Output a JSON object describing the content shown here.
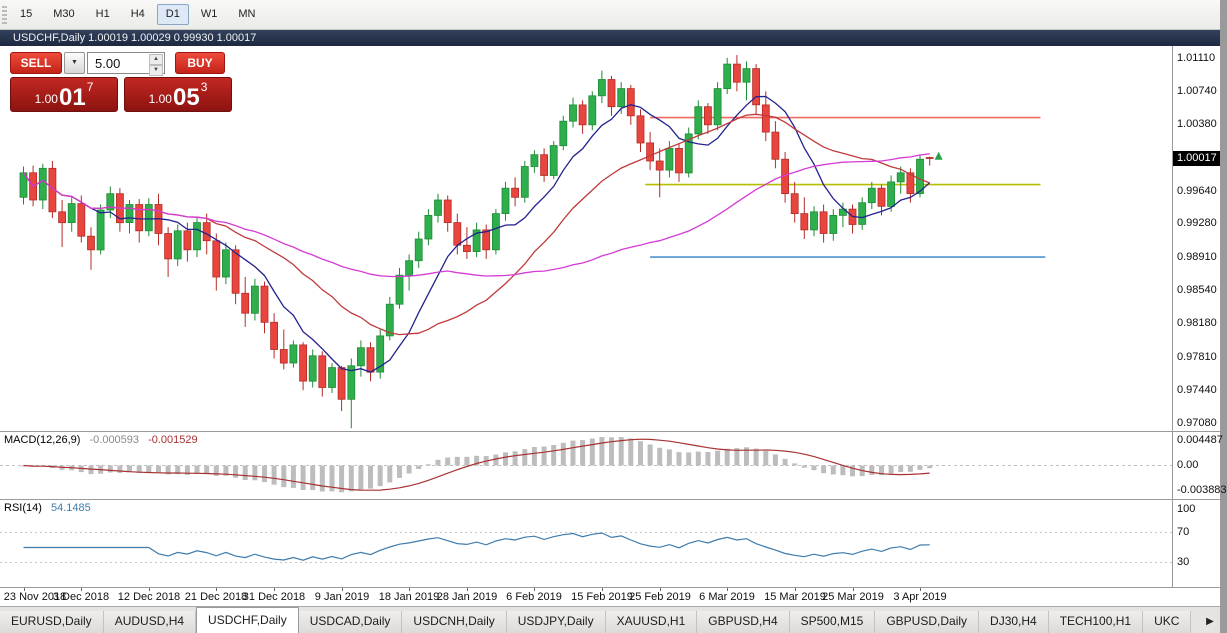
{
  "toolbar": {
    "timeframes": [
      {
        "label": "15",
        "active": false
      },
      {
        "label": "M30",
        "active": false
      },
      {
        "label": "H1",
        "active": false
      },
      {
        "label": "H4",
        "active": false
      },
      {
        "label": "D1",
        "active": true
      },
      {
        "label": "W1",
        "active": false
      },
      {
        "label": "MN",
        "active": false
      }
    ]
  },
  "chart_header": {
    "title": "USDCHF,Daily  1.00019 1.00029 0.99930 1.00017"
  },
  "trade_panel": {
    "sell_label": "SELL",
    "buy_label": "BUY",
    "volume_value": "5.00",
    "dropdown_icon": "▼",
    "spin_up_icon": "▲",
    "spin_down_icon": "▼",
    "sell_price": {
      "prefix": "1.00",
      "big": "01",
      "sup": "7"
    },
    "buy_price": {
      "prefix": "1.00",
      "big": "05",
      "sup": "3"
    }
  },
  "tabs": {
    "active_index": 2,
    "scroll_right_icon": "▶",
    "items": [
      "EURUSD,Daily",
      "AUDUSD,H4",
      "USDCHF,Daily",
      "USDCAD,Daily",
      "USDCNH,Daily",
      "USDJPY,Daily",
      "XAUUSD,H1",
      "GBPUSD,H4",
      "SP500,M15",
      "GBPUSD,Daily",
      "DJ30,H4",
      "TECH100,H1",
      "UKC"
    ]
  },
  "chart_data": {
    "type": "candlestick",
    "symbol": "USDCHF",
    "period": "Daily",
    "open_high_low_close": [
      "1.00019",
      "1.00029",
      "0.99930",
      "1.00017"
    ],
    "price_range": {
      "min": 0.97,
      "max": 1.0125
    },
    "price_axis": {
      "ticks": [
        "1.01110",
        "1.00740",
        "1.00380",
        "0.99640",
        "0.99280",
        "0.98910",
        "0.98540",
        "0.98180",
        "0.97810",
        "0.97440",
        "0.97080"
      ],
      "current": "1.00017"
    },
    "colors": {
      "up": "#2fae4d",
      "up_border": "#1e8c34",
      "down": "#e8453e",
      "down_border": "#b32c28"
    },
    "moving_averages": [
      {
        "period": 8,
        "color": "#22228e"
      },
      {
        "period": 20,
        "color": "#c03a3a"
      },
      {
        "period": 45,
        "color": "#d63bd6"
      }
    ],
    "hlines": [
      {
        "price": 1.0046,
        "color": "#ef6a5e",
        "from_bar": 65,
        "to_bar": 105.5
      },
      {
        "price": 0.9972,
        "color": "#b8bd00",
        "from_bar": 64.5,
        "to_bar": 105.5
      },
      {
        "price": 0.9892,
        "color": "#4f94cd",
        "from_bar": 65,
        "to_bar": 106
      }
    ],
    "indicators": {
      "macd": {
        "name": "MACD(12,26,9)",
        "value_main": "-0.000593",
        "value_signal": "-0.001529",
        "fast": 12,
        "slow": 26,
        "signal": 9,
        "histogram_color": "#bdbdbd",
        "signal_color": "#a83232",
        "axis_labels": [
          "0.004487",
          "0.00",
          "-0.003883"
        ]
      },
      "rsi": {
        "name": "RSI(14)",
        "value": "54.1485",
        "period": 14,
        "color": "#3f7cac",
        "levels": [
          70,
          30
        ],
        "axis_labels": [
          "100",
          "70",
          "30"
        ]
      }
    },
    "date_labels": [
      {
        "text": "23 Nov 2018",
        "bar": 0
      },
      {
        "text": "3 Dec 2018",
        "bar": 6
      },
      {
        "text": "12 Dec 2018",
        "bar": 13
      },
      {
        "text": "21 Dec 2018",
        "bar": 20
      },
      {
        "text": "31 Dec 2018",
        "bar": 26
      },
      {
        "text": "9 Jan 2019",
        "bar": 33
      },
      {
        "text": "18 Jan 2019",
        "bar": 40
      },
      {
        "text": "28 Jan 2019",
        "bar": 46
      },
      {
        "text": "6 Feb 2019",
        "bar": 53
      },
      {
        "text": "15 Feb 2019",
        "bar": 60
      },
      {
        "text": "25 Feb 2019",
        "bar": 66
      },
      {
        "text": "6 Mar 2019",
        "bar": 73
      },
      {
        "text": "15 Mar 2019",
        "bar": 80
      },
      {
        "text": "25 Mar 2019",
        "bar": 86
      },
      {
        "text": "3 Apr 2019",
        "bar": 93
      }
    ],
    "ohlc": [
      [
        0.9958,
        0.9992,
        0.995,
        0.9985
      ],
      [
        0.9985,
        0.9993,
        0.9948,
        0.9955
      ],
      [
        0.9955,
        0.9995,
        0.9945,
        0.999
      ],
      [
        0.999,
        0.9998,
        0.9935,
        0.9942
      ],
      [
        0.9942,
        0.9955,
        0.9903,
        0.993
      ],
      [
        0.993,
        0.9958,
        0.992,
        0.9951
      ],
      [
        0.9951,
        0.996,
        0.9908,
        0.9915
      ],
      [
        0.9915,
        0.9925,
        0.9878,
        0.99
      ],
      [
        0.99,
        0.995,
        0.9895,
        0.9944
      ],
      [
        0.9944,
        0.997,
        0.9935,
        0.9962
      ],
      [
        0.9962,
        0.9968,
        0.992,
        0.993
      ],
      [
        0.993,
        0.9955,
        0.9918,
        0.995
      ],
      [
        0.995,
        0.9956,
        0.9908,
        0.9921
      ],
      [
        0.9921,
        0.9957,
        0.9915,
        0.995
      ],
      [
        0.995,
        0.9962,
        0.9905,
        0.9918
      ],
      [
        0.9918,
        0.9925,
        0.987,
        0.989
      ],
      [
        0.989,
        0.9928,
        0.9882,
        0.9921
      ],
      [
        0.9921,
        0.993,
        0.9887,
        0.99
      ],
      [
        0.99,
        0.9936,
        0.9892,
        0.993
      ],
      [
        0.993,
        0.994,
        0.9895,
        0.991
      ],
      [
        0.991,
        0.9918,
        0.9855,
        0.987
      ],
      [
        0.987,
        0.9908,
        0.9862,
        0.99
      ],
      [
        0.99,
        0.9905,
        0.984,
        0.9852
      ],
      [
        0.9852,
        0.987,
        0.9815,
        0.983
      ],
      [
        0.983,
        0.9868,
        0.9822,
        0.986
      ],
      [
        0.986,
        0.9865,
        0.9808,
        0.982
      ],
      [
        0.982,
        0.983,
        0.978,
        0.979
      ],
      [
        0.979,
        0.9812,
        0.9768,
        0.9775
      ],
      [
        0.9775,
        0.98,
        0.977,
        0.9795
      ],
      [
        0.9795,
        0.9798,
        0.9745,
        0.9755
      ],
      [
        0.9755,
        0.979,
        0.9748,
        0.9783
      ],
      [
        0.9783,
        0.9788,
        0.9738,
        0.9748
      ],
      [
        0.9748,
        0.9775,
        0.9742,
        0.977
      ],
      [
        0.977,
        0.9772,
        0.9722,
        0.9735
      ],
      [
        0.9735,
        0.978,
        0.9703,
        0.9772
      ],
      [
        0.9772,
        0.98,
        0.976,
        0.9792
      ],
      [
        0.9792,
        0.9798,
        0.9755,
        0.9765
      ],
      [
        0.9765,
        0.9812,
        0.9758,
        0.9805
      ],
      [
        0.9805,
        0.9848,
        0.98,
        0.984
      ],
      [
        0.984,
        0.988,
        0.9835,
        0.9872
      ],
      [
        0.9872,
        0.9895,
        0.9855,
        0.9888
      ],
      [
        0.9888,
        0.992,
        0.988,
        0.9912
      ],
      [
        0.9912,
        0.9945,
        0.9905,
        0.9938
      ],
      [
        0.9938,
        0.9962,
        0.993,
        0.9955
      ],
      [
        0.9955,
        0.996,
        0.992,
        0.993
      ],
      [
        0.993,
        0.994,
        0.9895,
        0.9905
      ],
      [
        0.9905,
        0.9925,
        0.989,
        0.9898
      ],
      [
        0.9898,
        0.993,
        0.9892,
        0.9922
      ],
      [
        0.9922,
        0.9928,
        0.989,
        0.99
      ],
      [
        0.99,
        0.9945,
        0.9895,
        0.994
      ],
      [
        0.994,
        0.9975,
        0.9932,
        0.9968
      ],
      [
        0.9968,
        0.998,
        0.9948,
        0.9958
      ],
      [
        0.9958,
        0.9998,
        0.9952,
        0.9992
      ],
      [
        0.9992,
        1.001,
        0.9985,
        1.0005
      ],
      [
        1.0005,
        1.0012,
        0.9975,
        0.9982
      ],
      [
        0.9982,
        1.002,
        0.9978,
        1.0015
      ],
      [
        1.0015,
        1.0048,
        1.001,
        1.0042
      ],
      [
        1.0042,
        1.0068,
        1.0035,
        1.006
      ],
      [
        1.006,
        1.0065,
        1.0028,
        1.0038
      ],
      [
        1.0038,
        1.0075,
        1.0032,
        1.007
      ],
      [
        1.007,
        1.0098,
        1.0062,
        1.0088
      ],
      [
        1.0088,
        1.0092,
        1.0048,
        1.0058
      ],
      [
        1.0058,
        1.0085,
        1.005,
        1.0078
      ],
      [
        1.0078,
        1.0082,
        1.0038,
        1.0048
      ],
      [
        1.0048,
        1.0055,
        1.0008,
        1.0018
      ],
      [
        1.0018,
        1.003,
        0.9988,
        0.9998
      ],
      [
        0.9998,
        1.0012,
        0.9958,
        0.9988
      ],
      [
        0.9988,
        1.002,
        0.998,
        1.0012
      ],
      [
        1.0012,
        1.0018,
        0.9975,
        0.9985
      ],
      [
        0.9985,
        1.0035,
        0.998,
        1.0028
      ],
      [
        1.0028,
        1.0065,
        1.0022,
        1.0058
      ],
      [
        1.0058,
        1.0062,
        1.0028,
        1.0038
      ],
      [
        1.0038,
        1.0085,
        1.0032,
        1.0078
      ],
      [
        1.0078,
        1.0112,
        1.0072,
        1.0105
      ],
      [
        1.0105,
        1.0115,
        1.0075,
        1.0085
      ],
      [
        1.0085,
        1.0108,
        1.0065,
        1.01
      ],
      [
        1.01,
        1.0105,
        1.005,
        1.006
      ],
      [
        1.006,
        1.0075,
        1.002,
        1.003
      ],
      [
        1.003,
        1.0042,
        0.999,
        1.0
      ],
      [
        1.0,
        1.0008,
        0.9952,
        0.9962
      ],
      [
        0.9962,
        0.9975,
        0.993,
        0.994
      ],
      [
        0.994,
        0.9958,
        0.9912,
        0.9922
      ],
      [
        0.9922,
        0.9948,
        0.9915,
        0.9942
      ],
      [
        0.9942,
        0.995,
        0.9908,
        0.9918
      ],
      [
        0.9918,
        0.9945,
        0.991,
        0.9938
      ],
      [
        0.9938,
        0.9952,
        0.9925,
        0.9945
      ],
      [
        0.9945,
        0.995,
        0.9918,
        0.9928
      ],
      [
        0.9928,
        0.9958,
        0.9922,
        0.9952
      ],
      [
        0.9952,
        0.9975,
        0.9945,
        0.9968
      ],
      [
        0.9968,
        0.9972,
        0.9938,
        0.9948
      ],
      [
        0.9948,
        0.9982,
        0.9942,
        0.9975
      ],
      [
        0.9975,
        0.9992,
        0.9962,
        0.9985
      ],
      [
        0.9985,
        0.999,
        0.9952,
        0.9962
      ],
      [
        0.9962,
        1.0005,
        0.9958,
        1.0
      ],
      [
        1.00019,
        1.00029,
        0.9993,
        1.00017
      ]
    ]
  }
}
